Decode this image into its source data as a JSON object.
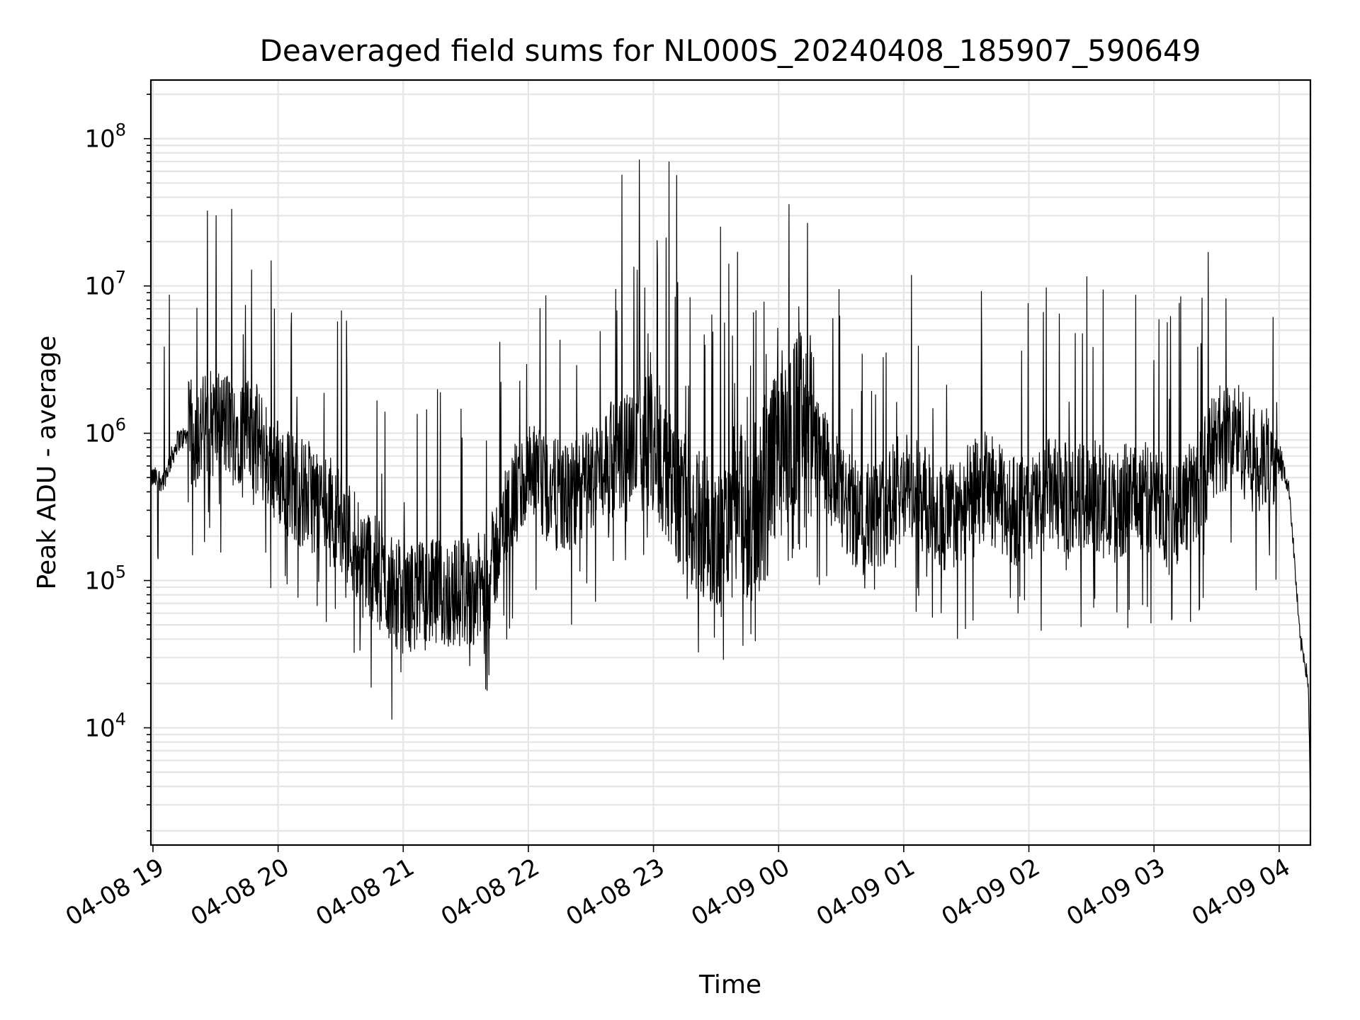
{
  "chart_data": {
    "type": "line",
    "title": "Deaveraged field sums for NL000S_20240408_185907_590649",
    "xlabel": "Time",
    "ylabel": "Peak ADU - average",
    "yscale": "log",
    "ylim": [
      1600,
      250000000
    ],
    "xlim": [
      "04-08 18:59",
      "04-09 04:15"
    ],
    "grid": true,
    "grid_color": "#e5e5e5",
    "line_color": "#000000",
    "x_tick_labels": [
      "04-08 19",
      "04-08 20",
      "04-08 21",
      "04-08 22",
      "04-08 23",
      "04-09 00",
      "04-09 01",
      "04-09 02",
      "04-09 03",
      "04-09 04"
    ],
    "y_tick_labels": [
      {
        "base": "10",
        "exp": "4",
        "value": 10000
      },
      {
        "base": "10",
        "exp": "5",
        "value": 100000
      },
      {
        "base": "10",
        "exp": "6",
        "value": 1000000
      },
      {
        "base": "10",
        "exp": "7",
        "value": 10000000
      },
      {
        "base": "10",
        "exp": "8",
        "value": 100000000
      }
    ],
    "series": [
      {
        "x": [
          "04-08 18:59",
          "04-08 19:05",
          "04-08 19:12",
          "04-08 19:20",
          "04-08 19:30",
          "04-08 19:40",
          "04-08 19:50",
          "04-08 20:00",
          "04-08 20:10",
          "04-08 20:20",
          "04-08 20:30",
          "04-08 20:40",
          "04-08 20:50",
          "04-08 21:00",
          "04-08 21:10",
          "04-08 21:20",
          "04-08 21:30",
          "04-08 21:40",
          "04-08 21:50",
          "04-08 22:00",
          "04-08 22:10",
          "04-08 22:20",
          "04-08 22:30",
          "04-08 22:40",
          "04-08 22:50",
          "04-08 23:00",
          "04-08 23:10",
          "04-08 23:20",
          "04-08 23:30",
          "04-08 23:40",
          "04-08 23:50",
          "04-09 00:00",
          "04-09 00:10",
          "04-09 00:20",
          "04-09 00:30",
          "04-09 00:40",
          "04-09 00:50",
          "04-09 01:00",
          "04-09 01:10",
          "04-09 01:20",
          "04-09 01:30",
          "04-09 01:40",
          "04-09 01:50",
          "04-09 02:00",
          "04-09 02:10",
          "04-09 02:20",
          "04-09 02:30",
          "04-09 02:40",
          "04-09 02:50",
          "04-09 03:00",
          "04-09 03:10",
          "04-09 03:20",
          "04-09 03:30",
          "04-09 03:40",
          "04-09 03:50",
          "04-09 04:00",
          "04-09 04:05",
          "04-09 04:10",
          "04-09 04:12",
          "04-09 04:14",
          "04-09 04:15"
        ],
        "values": [
          500000,
          480000,
          900000,
          1000000,
          1200000,
          1100000,
          900000,
          550000,
          400000,
          350000,
          250000,
          160000,
          100000,
          75000,
          80000,
          80000,
          85000,
          90000,
          300000,
          500000,
          400000,
          350000,
          500000,
          700000,
          800000,
          900000,
          400000,
          250000,
          200000,
          250000,
          300000,
          800000,
          1200000,
          700000,
          350000,
          250000,
          300000,
          450000,
          350000,
          250000,
          350000,
          450000,
          300000,
          300000,
          400000,
          350000,
          400000,
          300000,
          400000,
          350000,
          300000,
          400000,
          900000,
          1000000,
          600000,
          700000,
          400000,
          40000,
          30000,
          20000,
          2800
        ]
      }
    ]
  }
}
